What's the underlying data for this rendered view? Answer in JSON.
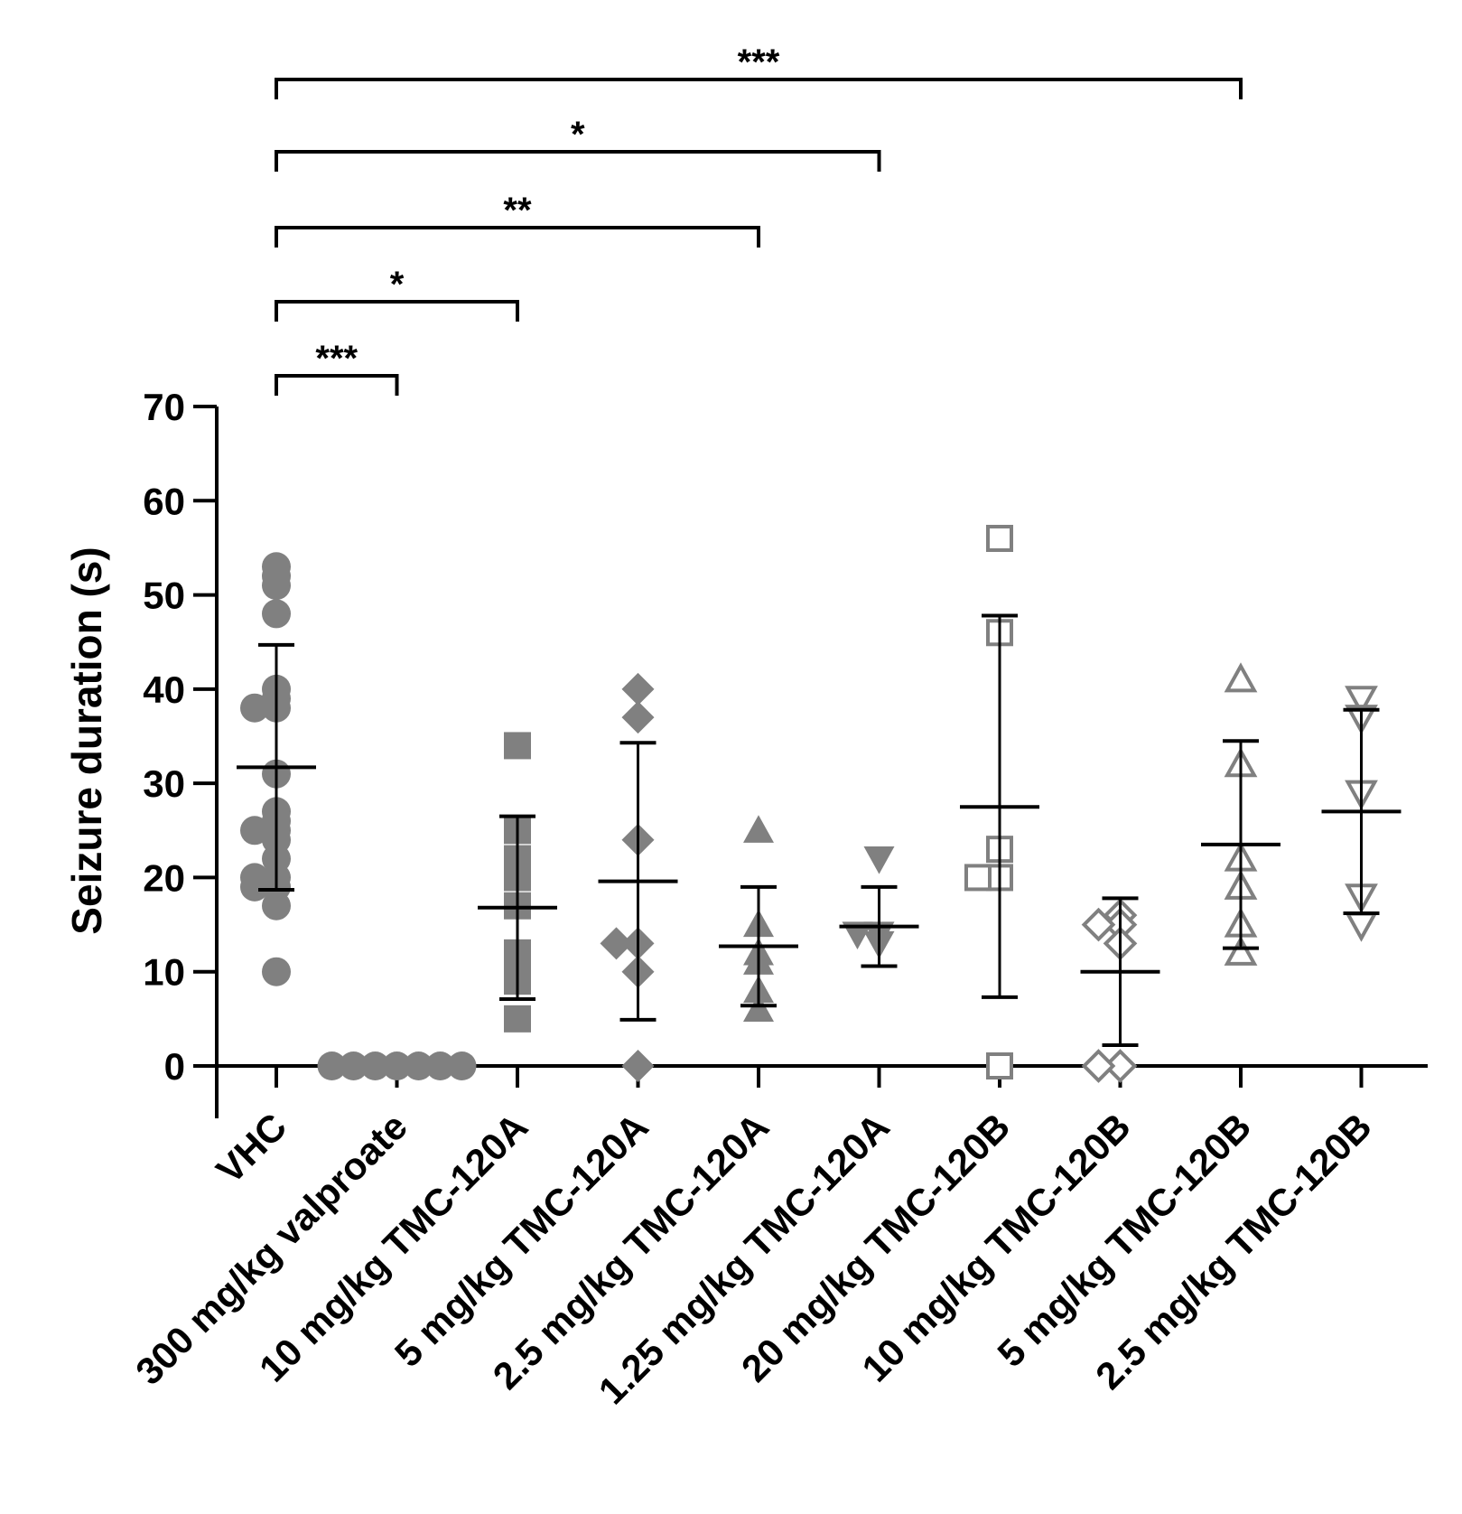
{
  "chart_data": {
    "type": "scatter",
    "ylabel": "Seizure duration (s)",
    "xlabel": "",
    "ylim": [
      0,
      70
    ],
    "yticks": [
      0,
      10,
      20,
      30,
      40,
      50,
      60,
      70
    ],
    "marker_colors": {
      "filled": "#808080",
      "open": "#808080",
      "error_bar": "#000000"
    },
    "categories": [
      "VHC",
      "300 mg/kg valproate",
      "10 mg/kg TMC-120A",
      "5 mg/kg TMC-120A",
      "2.5 mg/kg TMC-120A",
      "1.25 mg/kg TMC-120A",
      "20 mg/kg TMC-120B",
      "10 mg/kg TMC-120B",
      "5 mg/kg TMC-120B",
      "2.5 mg/kg TMC-120B"
    ],
    "series": [
      {
        "name": "VHC",
        "marker": "circle",
        "filled": true,
        "mean": 31.7,
        "sd_low": 18.7,
        "sd_high": 44.7,
        "values": [
          53,
          52,
          51,
          48,
          40,
          39,
          38,
          38,
          31,
          27,
          26,
          25,
          25,
          24,
          22,
          20,
          20,
          19,
          19,
          17,
          10
        ]
      },
      {
        "name": "300 mg/kg valproate",
        "marker": "circle",
        "filled": true,
        "mean": 0,
        "sd_low": 0,
        "sd_high": 0,
        "values": [
          0,
          0,
          0,
          0,
          0,
          0,
          0
        ]
      },
      {
        "name": "10 mg/kg TMC-120A",
        "marker": "square",
        "filled": true,
        "mean": 16.8,
        "sd_low": 7.1,
        "sd_high": 26.5,
        "values": [
          34,
          25,
          22,
          20,
          17,
          12,
          10,
          9,
          5
        ]
      },
      {
        "name": "5 mg/kg TMC-120A",
        "marker": "diamond",
        "filled": true,
        "mean": 19.6,
        "sd_low": 4.9,
        "sd_high": 34.3,
        "values": [
          40,
          37,
          24,
          13,
          13,
          10,
          0
        ]
      },
      {
        "name": "2.5 mg/kg TMC-120A",
        "marker": "triangle-up",
        "filled": true,
        "mean": 12.7,
        "sd_low": 6.4,
        "sd_high": 19.0,
        "values": [
          25,
          15,
          12,
          11,
          8,
          6
        ]
      },
      {
        "name": "1.25 mg/kg TMC-120A",
        "marker": "triangle-down",
        "filled": true,
        "mean": 14.8,
        "sd_low": 10.6,
        "sd_high": 19.0,
        "values": [
          22,
          14,
          14,
          13
        ]
      },
      {
        "name": "20 mg/kg TMC-120B",
        "marker": "square",
        "filled": false,
        "mean": 27.5,
        "sd_low": 7.3,
        "sd_high": 47.8,
        "values": [
          56,
          46,
          23,
          20,
          20,
          0
        ]
      },
      {
        "name": "10 mg/kg TMC-120B",
        "marker": "diamond",
        "filled": false,
        "mean": 10.0,
        "sd_low": 2.2,
        "sd_high": 17.8,
        "values": [
          16,
          15,
          15,
          13,
          0,
          0
        ]
      },
      {
        "name": "5 mg/kg TMC-120B",
        "marker": "triangle-up",
        "filled": false,
        "mean": 23.5,
        "sd_low": 12.5,
        "sd_high": 34.5,
        "values": [
          41,
          32,
          22,
          19,
          15,
          12
        ]
      },
      {
        "name": "2.5 mg/kg TMC-120B",
        "marker": "triangle-down",
        "filled": false,
        "mean": 27.0,
        "sd_low": 16.2,
        "sd_high": 37.8,
        "values": [
          39,
          37,
          29,
          18,
          15
        ]
      }
    ],
    "significance": [
      {
        "from": 0,
        "to": 8,
        "label": "***"
      },
      {
        "from": 0,
        "to": 5,
        "label": "*"
      },
      {
        "from": 0,
        "to": 4,
        "label": "**"
      },
      {
        "from": 0,
        "to": 2,
        "label": "*"
      },
      {
        "from": 0,
        "to": 1,
        "label": "***"
      }
    ]
  }
}
